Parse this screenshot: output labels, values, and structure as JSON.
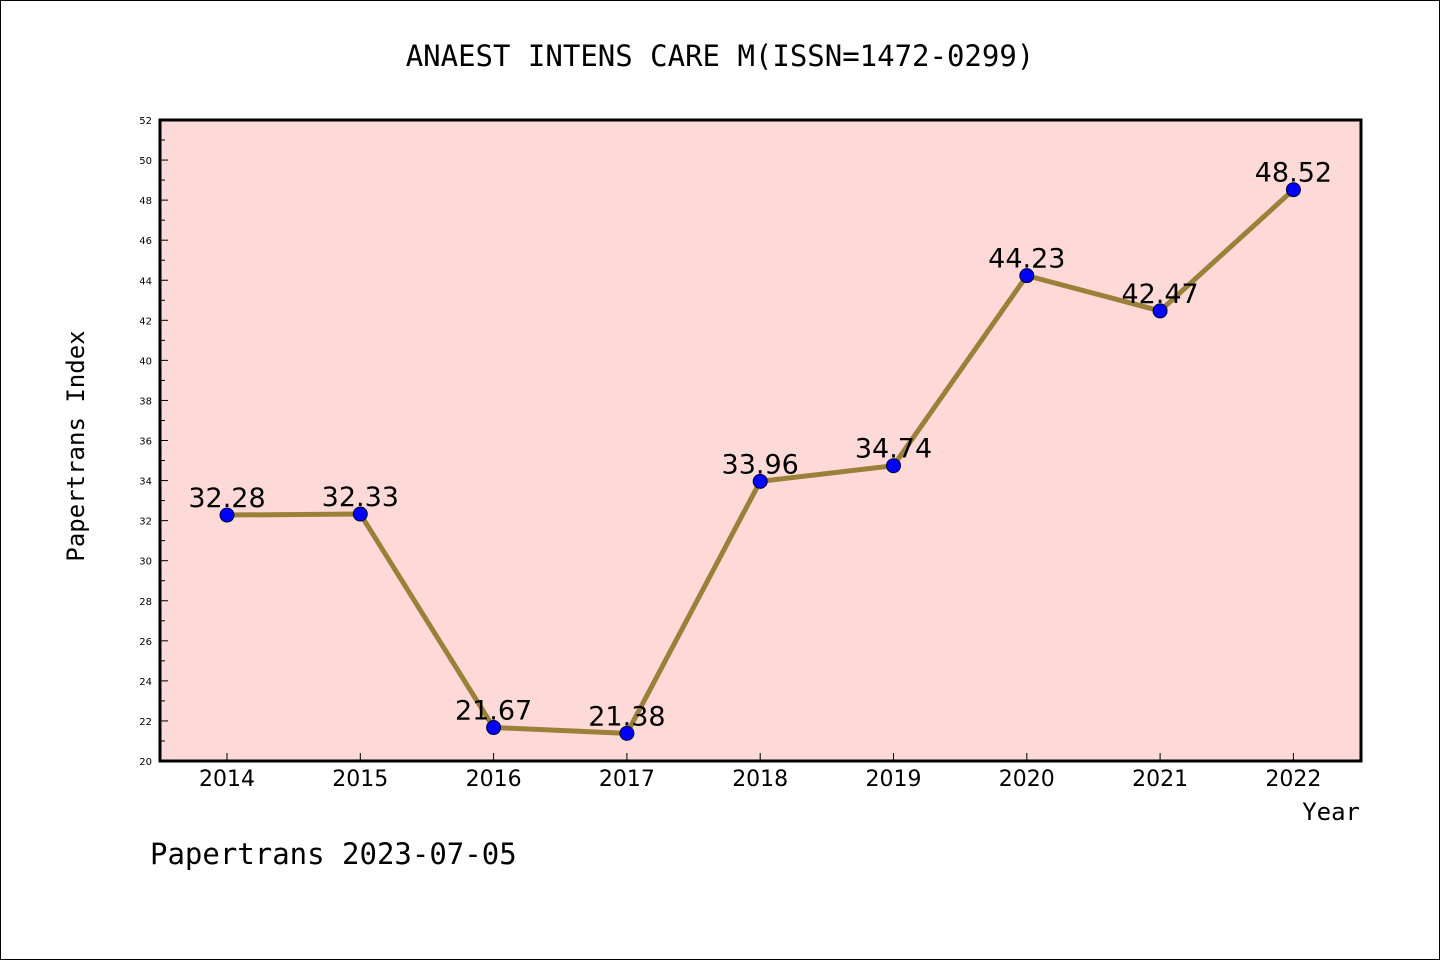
{
  "chart_data": {
    "type": "line",
    "title": "ANAEST INTENS CARE M(ISSN=1472-0299)",
    "xlabel": "Year",
    "ylabel": "Papertrans Index",
    "categories": [
      "2014",
      "2015",
      "2016",
      "2017",
      "2018",
      "2019",
      "2020",
      "2021",
      "2022"
    ],
    "values": [
      32.28,
      32.33,
      21.67,
      21.38,
      33.96,
      34.74,
      44.23,
      42.47,
      48.52
    ],
    "data_labels": [
      "32.28",
      "32.33",
      "21.67",
      "21.38",
      "33.96",
      "34.74",
      "44.23",
      "42.47",
      "48.52"
    ],
    "ylim": [
      20,
      52
    ],
    "y_ticks": [
      "20",
      "22",
      "24",
      "26",
      "28",
      "30",
      "32",
      "34",
      "36",
      "38",
      "40",
      "42",
      "44",
      "46",
      "48",
      "50",
      "52"
    ],
    "grid": false,
    "legend": "none",
    "colors": {
      "plot_background": "#fddad8",
      "line": "#9a8038",
      "marker": "#0000ff",
      "axis": "#000000"
    }
  },
  "footer": {
    "stamp": "Papertrans 2023-07-05"
  }
}
